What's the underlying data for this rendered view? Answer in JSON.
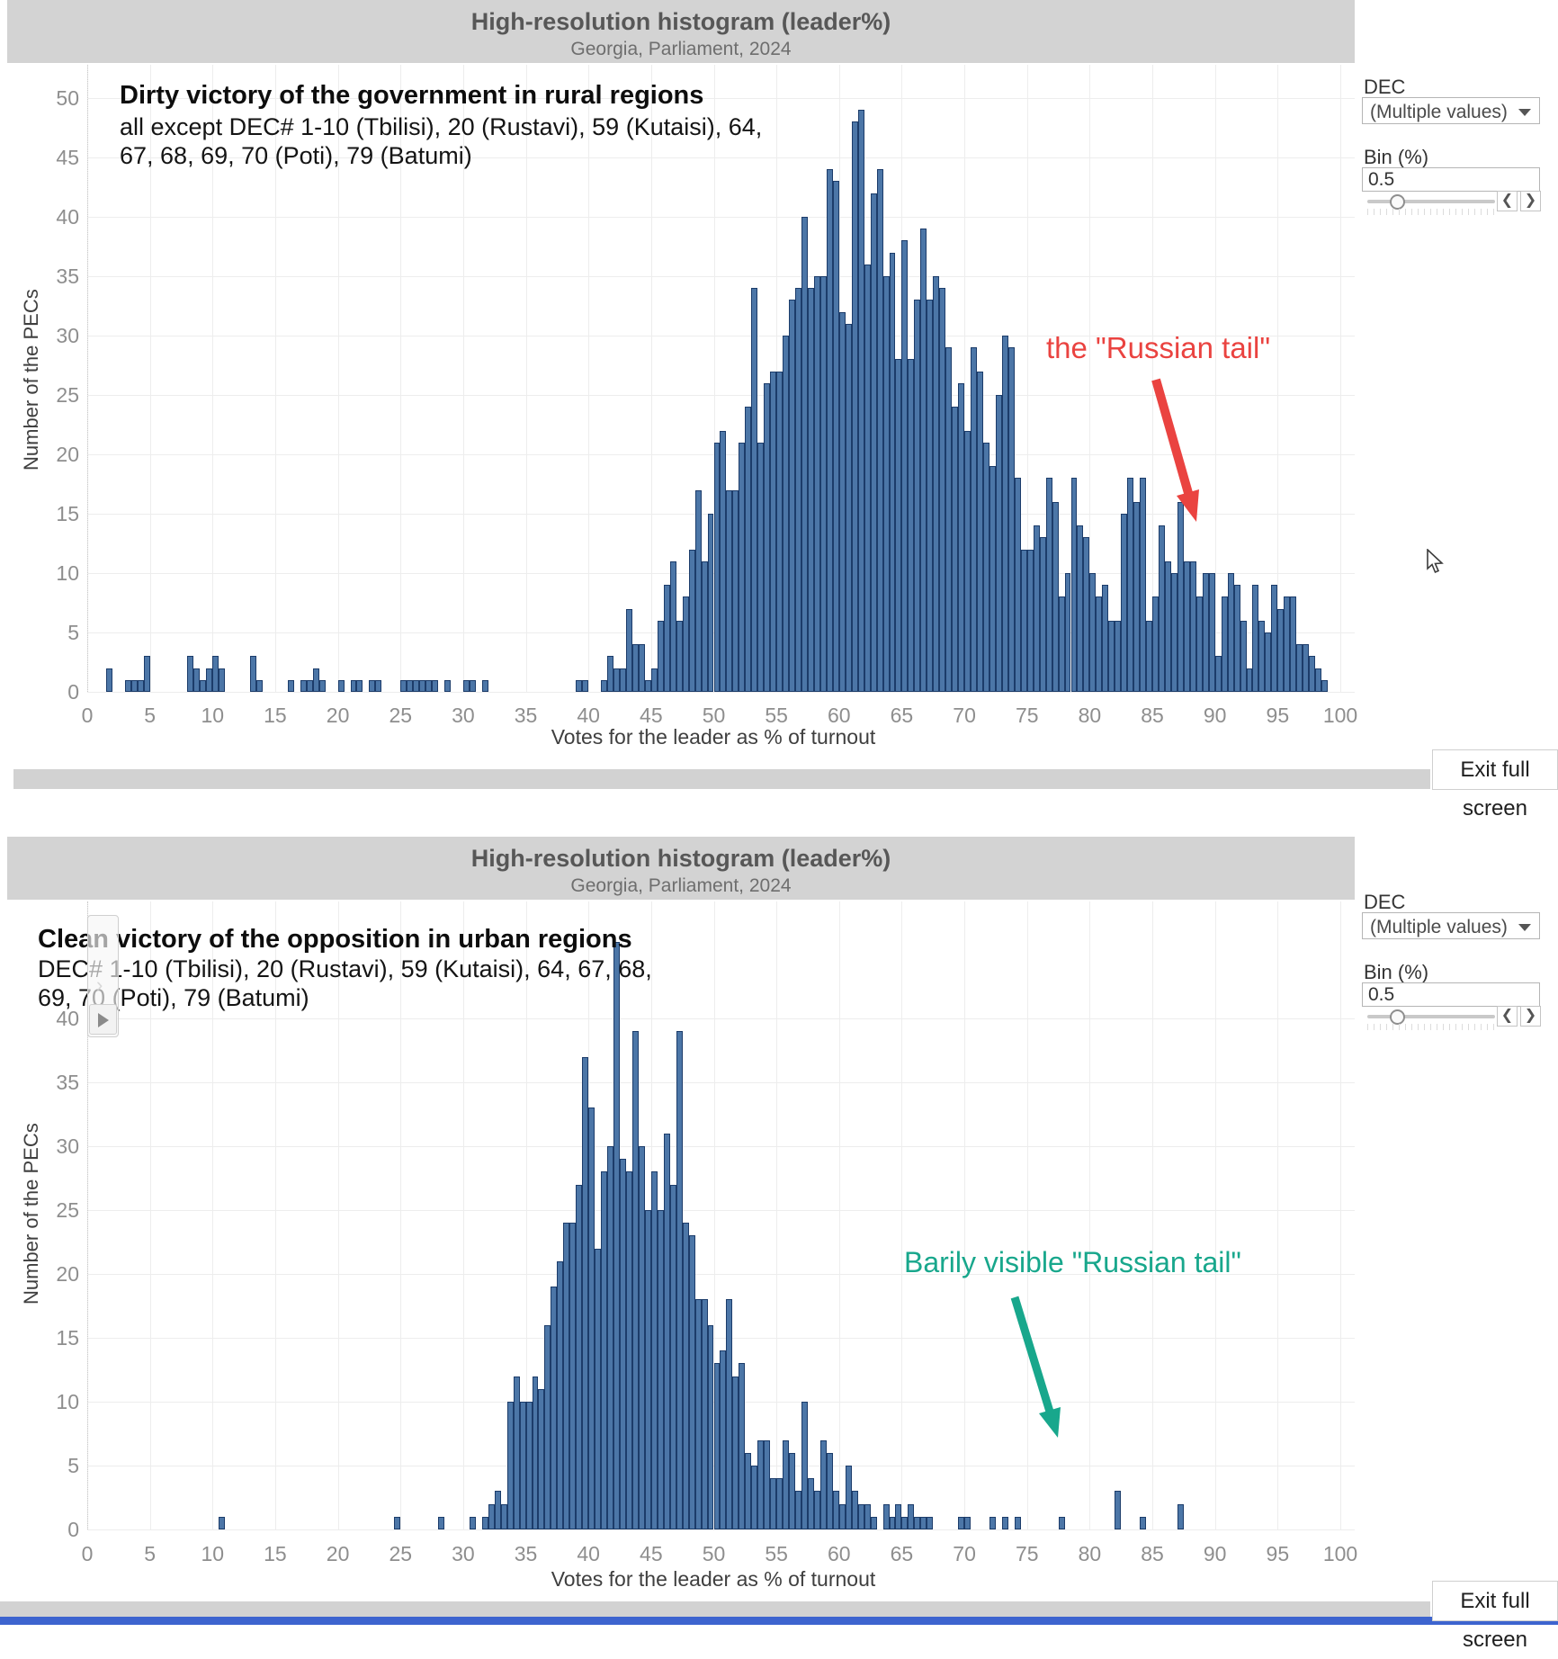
{
  "app": {
    "exit_fullscreen_label": "Exit full screen"
  },
  "panel": {
    "dec_label": "DEC",
    "dec_value": "(Multiple values)",
    "bin_label": "Bin (%)",
    "bin_value": "0.5"
  },
  "charts": [
    {
      "header_title": "High-resolution histogram (leader%)",
      "header_subtitle": "Georgia, Parliament, 2024",
      "annotation_title": "Dirty victory of the government in rural regions",
      "annotation_line1": "all except DEC# 1-10 (Tbilisi), 20 (Rustavi), 59 (Kutaisi), 64,",
      "annotation_line2": "67, 68, 69, 70 (Poti), 79 (Batumi)",
      "callout_text": "the \"Russian tail\"",
      "callout_color": "#ea4340"
    },
    {
      "header_title": "High-resolution histogram (leader%)",
      "header_subtitle": "Georgia, Parliament, 2024",
      "annotation_title": "Clean victory of the opposition in urban regions",
      "annotation_line1": "DEC# 1-10 (Tbilisi), 20 (Rustavi), 59 (Kutaisi), 64, 67, 68,",
      "annotation_line2": "69, 70 (Poti), 79 (Batumi)",
      "callout_text": "Barily visible \"Russian tail\"",
      "callout_color": "#18a78c"
    }
  ],
  "chart_data": [
    {
      "type": "bar",
      "title": "Dirty victory of the government in rural regions",
      "xlabel": "Votes for the leader as % of turnout",
      "ylabel": "Number of the PECs",
      "xlim": [
        0,
        100
      ],
      "ylim": [
        0,
        50
      ],
      "x_tick_step": 5,
      "y_tick_step": 5,
      "bin_width": 0.5,
      "grid": true,
      "bar_color": "#4c76a7",
      "bar_border": "#1c3c6a",
      "bins": [
        [
          1.5,
          2
        ],
        [
          3,
          1
        ],
        [
          3.5,
          1
        ],
        [
          4,
          1
        ],
        [
          4.5,
          3
        ],
        [
          8,
          3
        ],
        [
          8.5,
          2
        ],
        [
          9,
          1
        ],
        [
          9.5,
          2
        ],
        [
          10,
          3
        ],
        [
          10.5,
          2
        ],
        [
          13,
          3
        ],
        [
          13.5,
          1
        ],
        [
          16,
          1
        ],
        [
          17,
          1
        ],
        [
          17.5,
          1
        ],
        [
          18,
          2
        ],
        [
          18.5,
          1
        ],
        [
          20,
          1
        ],
        [
          21,
          1
        ],
        [
          21.5,
          1
        ],
        [
          22.5,
          1
        ],
        [
          23,
          1
        ],
        [
          25,
          1
        ],
        [
          25.5,
          1
        ],
        [
          26,
          1
        ],
        [
          26.5,
          1
        ],
        [
          27,
          1
        ],
        [
          27.5,
          1
        ],
        [
          28.5,
          1
        ],
        [
          30,
          1
        ],
        [
          30.5,
          1
        ],
        [
          31.5,
          1
        ],
        [
          39,
          1
        ],
        [
          39.5,
          1
        ],
        [
          41,
          1
        ],
        [
          41.5,
          3
        ],
        [
          42,
          2
        ],
        [
          42.5,
          2
        ],
        [
          43,
          7
        ],
        [
          43.5,
          4
        ],
        [
          44,
          4
        ],
        [
          44.5,
          1
        ],
        [
          45,
          2
        ],
        [
          45.5,
          6
        ],
        [
          46,
          9
        ],
        [
          46.5,
          11
        ],
        [
          47,
          6
        ],
        [
          47.5,
          8
        ],
        [
          48,
          12
        ],
        [
          48.5,
          17
        ],
        [
          49,
          11
        ],
        [
          49.5,
          15
        ],
        [
          50,
          21
        ],
        [
          50.5,
          22
        ],
        [
          51,
          17
        ],
        [
          51.5,
          17
        ],
        [
          52,
          21
        ],
        [
          52.5,
          24
        ],
        [
          53,
          34
        ],
        [
          53.5,
          21
        ],
        [
          54,
          26
        ],
        [
          54.5,
          27
        ],
        [
          55,
          27
        ],
        [
          55.5,
          30
        ],
        [
          56,
          33
        ],
        [
          56.5,
          34
        ],
        [
          57,
          40
        ],
        [
          57.5,
          34
        ],
        [
          58,
          35
        ],
        [
          58.5,
          35
        ],
        [
          59,
          44
        ],
        [
          59.5,
          43
        ],
        [
          60,
          32
        ],
        [
          60.5,
          31
        ],
        [
          61,
          48
        ],
        [
          61.5,
          49
        ],
        [
          62,
          36
        ],
        [
          62.5,
          42
        ],
        [
          63,
          44
        ],
        [
          63.5,
          35
        ],
        [
          64,
          37
        ],
        [
          64.5,
          28
        ],
        [
          65,
          38
        ],
        [
          65.5,
          28
        ],
        [
          66,
          33
        ],
        [
          66.5,
          39
        ],
        [
          67,
          33
        ],
        [
          67.5,
          35
        ],
        [
          68,
          34
        ],
        [
          68.5,
          29
        ],
        [
          69,
          24
        ],
        [
          69.5,
          26
        ],
        [
          70,
          22
        ],
        [
          70.5,
          29
        ],
        [
          71,
          27
        ],
        [
          71.5,
          21
        ],
        [
          72,
          19
        ],
        [
          72.5,
          25
        ],
        [
          73,
          30
        ],
        [
          73.5,
          29
        ],
        [
          74,
          18
        ],
        [
          74.5,
          12
        ],
        [
          75,
          12
        ],
        [
          75.5,
          14
        ],
        [
          76,
          13
        ],
        [
          76.5,
          18
        ],
        [
          77,
          16
        ],
        [
          77.5,
          8
        ],
        [
          78,
          10
        ],
        [
          78.5,
          18
        ],
        [
          79,
          14
        ],
        [
          79.5,
          13
        ],
        [
          80,
          10
        ],
        [
          80.5,
          8
        ],
        [
          81,
          9
        ],
        [
          81.5,
          6
        ],
        [
          82,
          6
        ],
        [
          82.5,
          15
        ],
        [
          83,
          18
        ],
        [
          83.5,
          16
        ],
        [
          84,
          18
        ],
        [
          84.5,
          6
        ],
        [
          85,
          8
        ],
        [
          85.5,
          14
        ],
        [
          86,
          11
        ],
        [
          86.5,
          10
        ],
        [
          87,
          16
        ],
        [
          87.5,
          11
        ],
        [
          88,
          11
        ],
        [
          88.5,
          8
        ],
        [
          89,
          10
        ],
        [
          89.5,
          10
        ],
        [
          90,
          3
        ],
        [
          90.5,
          8
        ],
        [
          91,
          10
        ],
        [
          91.5,
          9
        ],
        [
          92,
          6
        ],
        [
          92.5,
          2
        ],
        [
          93,
          9
        ],
        [
          93.5,
          6
        ],
        [
          94,
          5
        ],
        [
          94.5,
          9
        ],
        [
          95,
          7
        ],
        [
          95.5,
          8
        ],
        [
          96,
          8
        ],
        [
          96.5,
          4
        ],
        [
          97,
          4
        ],
        [
          97.5,
          3
        ],
        [
          98,
          2
        ],
        [
          98.5,
          1
        ]
      ]
    },
    {
      "type": "bar",
      "title": "Clean victory of the opposition in urban regions",
      "xlabel": "Votes for the leader as % of turnout",
      "ylabel": "Number of the PECs",
      "xlim": [
        0,
        100
      ],
      "ylim": [
        0,
        40
      ],
      "x_tick_step": 5,
      "y_tick_step": 5,
      "bin_width": 0.5,
      "grid": true,
      "bar_color": "#4c76a7",
      "bar_border": "#1c3c6a",
      "bins": [
        [
          10.5,
          1
        ],
        [
          24.5,
          1
        ],
        [
          28,
          1
        ],
        [
          30.5,
          1
        ],
        [
          31.5,
          1
        ],
        [
          32,
          2
        ],
        [
          32.5,
          3
        ],
        [
          33,
          2
        ],
        [
          33.5,
          10
        ],
        [
          34,
          12
        ],
        [
          34.5,
          10
        ],
        [
          35,
          10
        ],
        [
          35.5,
          12
        ],
        [
          36,
          11
        ],
        [
          36.5,
          16
        ],
        [
          37,
          19
        ],
        [
          37.5,
          21
        ],
        [
          38,
          24
        ],
        [
          38.5,
          24
        ],
        [
          39,
          27
        ],
        [
          39.5,
          37
        ],
        [
          40,
          33
        ],
        [
          40.5,
          22
        ],
        [
          41,
          28
        ],
        [
          41.5,
          30
        ],
        [
          42,
          46
        ],
        [
          42.5,
          29
        ],
        [
          43,
          28
        ],
        [
          43.5,
          39
        ],
        [
          44,
          30
        ],
        [
          44.5,
          25
        ],
        [
          45,
          28
        ],
        [
          45.5,
          25
        ],
        [
          46,
          31
        ],
        [
          46.5,
          27
        ],
        [
          47,
          39
        ],
        [
          47.5,
          24
        ],
        [
          48,
          23
        ],
        [
          48.5,
          18
        ],
        [
          49,
          18
        ],
        [
          49.5,
          16
        ],
        [
          50,
          13
        ],
        [
          50.5,
          14
        ],
        [
          51,
          18
        ],
        [
          51.5,
          12
        ],
        [
          52,
          13
        ],
        [
          52.5,
          6
        ],
        [
          53,
          5
        ],
        [
          53.5,
          7
        ],
        [
          54,
          7
        ],
        [
          54.5,
          4
        ],
        [
          55,
          4
        ],
        [
          55.5,
          7
        ],
        [
          56,
          6
        ],
        [
          56.5,
          3
        ],
        [
          57,
          10
        ],
        [
          57.5,
          4
        ],
        [
          58,
          3
        ],
        [
          58.5,
          7
        ],
        [
          59,
          6
        ],
        [
          59.5,
          3
        ],
        [
          60,
          2
        ],
        [
          60.5,
          5
        ],
        [
          61,
          3
        ],
        [
          61.5,
          2
        ],
        [
          62,
          2
        ],
        [
          62.5,
          1
        ],
        [
          63.5,
          2
        ],
        [
          64,
          1
        ],
        [
          64.5,
          2
        ],
        [
          65,
          1
        ],
        [
          65.5,
          2
        ],
        [
          66,
          1
        ],
        [
          66.5,
          1
        ],
        [
          67,
          1
        ],
        [
          69.5,
          1
        ],
        [
          70,
          1
        ],
        [
          72,
          1
        ],
        [
          73,
          1
        ],
        [
          74,
          1
        ],
        [
          77.5,
          1
        ],
        [
          82,
          3
        ],
        [
          84,
          1
        ],
        [
          87,
          2
        ]
      ]
    }
  ]
}
